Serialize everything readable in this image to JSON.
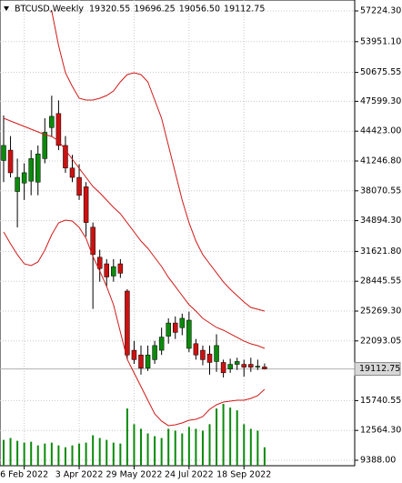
{
  "chart_data": {
    "type": "candlestick",
    "symbol": "BTCUSD,Weekly",
    "header_ohlc": [
      19320.55,
      19696.25,
      {
        "value": 19056.5,
        "label": "19056.50"
      },
      19112.75
    ],
    "last_price": 19112.75,
    "categories": [
      null,
      null,
      null,
      "6 Feb 2022",
      null,
      null,
      null,
      null,
      null,
      null,
      null,
      "3 Apr 2022",
      null,
      null,
      null,
      null,
      null,
      null,
      null,
      "29 May 2022",
      null,
      null,
      null,
      null,
      null,
      null,
      null,
      "24 Jul 2022",
      null,
      null,
      null,
      null,
      null,
      null,
      null,
      "18 Sep 2022",
      null,
      null,
      null
    ],
    "open": [
      41300,
      42400,
      38000,
      38900,
      39100,
      39000,
      41500,
      44800,
      46300,
      42900,
      40500,
      39500,
      38500,
      34200,
      31000,
      30300,
      29000,
      30300,
      27400,
      21100,
      20600,
      19200,
      20100,
      21100,
      22600,
      24000,
      23500,
      21300,
      21800,
      21100,
      20700,
      19900,
      19800,
      19100,
      19600,
      19600,
      19600,
      19300,
      19320.55
    ],
    "high": [
      46100,
      43900,
      41500,
      41000,
      42400,
      42900,
      45800,
      48200,
      47700,
      43900,
      41900,
      40900,
      39000,
      34700,
      31800,
      30800,
      30800,
      30800,
      27600,
      22100,
      21600,
      21600,
      22100,
      23500,
      24500,
      24700,
      25000,
      25200,
      22300,
      21600,
      21600,
      22800,
      20100,
      20200,
      20300,
      20100,
      20300,
      20100,
      19696.25
    ],
    "low": [
      39000,
      39500,
      34180,
      37100,
      37600,
      37600,
      41000,
      43800,
      42400,
      39990,
      39000,
      37100,
      33200,
      25500,
      28400,
      27900,
      28400,
      28800,
      20100,
      19650,
      18500,
      18900,
      19650,
      20600,
      21800,
      22300,
      22700,
      20900,
      20100,
      19500,
      18500,
      18800,
      18200,
      18700,
      19000,
      18300,
      18800,
      19000,
      19056.5
    ],
    "close": [
      42900,
      39990,
      39500,
      40000,
      41500,
      42000,
      44300,
      46000,
      42900,
      40500,
      39500,
      37600,
      34700,
      31300,
      29800,
      28900,
      30000,
      29300,
      20600,
      20100,
      19200,
      20600,
      21600,
      22500,
      24000,
      23000,
      24500,
      24300,
      20600,
      20100,
      19800,
      21600,
      18700,
      19600,
      19900,
      19300,
      19300,
      19400,
      19112.75
    ],
    "up_color": "#0b8a0b",
    "down_color": "#cc1111",
    "volume": {
      "color": "#0b8a0b",
      "values": [
        28,
        30,
        27,
        25,
        26,
        22,
        24,
        25,
        22,
        20,
        22,
        24,
        25,
        33,
        30,
        28,
        25,
        24,
        62,
        45,
        40,
        35,
        32,
        30,
        40,
        38,
        35,
        42,
        40,
        38,
        45,
        62,
        67,
        63,
        60,
        45,
        40,
        38,
        20
      ]
    },
    "bands": {
      "color": "#d11a1a",
      "upper": [
        null,
        null,
        null,
        null,
        null,
        null,
        null,
        57224,
        53544,
        50640,
        49187,
        47928,
        47735,
        47735,
        47928,
        48219,
        48703,
        49671,
        50446,
        50640,
        50446,
        49671,
        47735,
        45798,
        42893,
        39988,
        37083,
        34663,
        32726,
        31274,
        30305,
        29337,
        28369,
        27594,
        26916,
        26238,
        25657,
        25464,
        25270
      ],
      "middle": [
        45798,
        45508,
        45217,
        44927,
        44636,
        44346,
        44055,
        43861,
        43377,
        42409,
        41441,
        40472,
        39504,
        38536,
        37858,
        37083,
        36309,
        35631,
        34663,
        33694,
        32726,
        31951,
        30983,
        30015,
        28853,
        27885,
        26916,
        25948,
        25270,
        24495,
        24011,
        23527,
        23237,
        22849,
        22462,
        22075,
        21784,
        21591,
        21300
      ],
      "lower": [
        33694,
        32436,
        31274,
        30305,
        30112,
        30499,
        31758,
        33404,
        34663,
        34953,
        34856,
        34178,
        33017,
        31080,
        29531,
        27885,
        25948,
        23043,
        20138,
        18686,
        17233,
        15781,
        14328,
        13554,
        13070,
        13167,
        13360,
        13651,
        13747,
        14038,
        14812,
        15297,
        15587,
        15684,
        15781,
        15781,
        15974,
        16265,
        16943
      ]
    },
    "ylim": [
      8807,
      58386
    ],
    "yticks": [
      {
        "value": 57224.3,
        "label": "57224.30"
      },
      {
        "value": 53951.1,
        "label": "53951.10"
      },
      50675.55,
      {
        "value": 47599.3,
        "label": "47599.30"
      },
      {
        "value": 44423,
        "label": "44423.00"
      },
      {
        "value": 41246.8,
        "label": "41246.80"
      },
      38070.55,
      {
        "value": 34894.3,
        "label": "34894.30"
      },
      {
        "value": 31621.8,
        "label": "31621.80"
      },
      28445.55,
      {
        "value": 25269.3,
        "label": "25269.30"
      },
      22093.05,
      15740.55,
      {
        "value": 12564.3,
        "label": "12564.30"
      },
      {
        "value": 9388,
        "label": "9388.00"
      }
    ],
    "grid": true
  }
}
